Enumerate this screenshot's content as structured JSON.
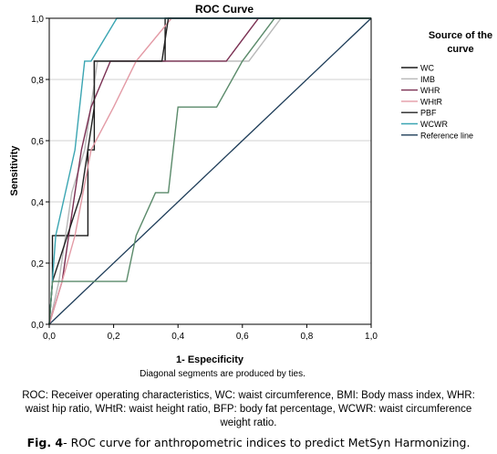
{
  "chart_data": {
    "type": "line",
    "title": "ROC Curve",
    "xlabel": "1- Especificity",
    "ylabel": "Sensitivity",
    "subtitle": "Diagonal segments are produced by ties.",
    "xlim": [
      0,
      1
    ],
    "ylim": [
      0,
      1
    ],
    "xticks": [
      "0,0",
      "0,2",
      "0,4",
      "0,6",
      "0,8",
      "1,0"
    ],
    "yticks": [
      "0,0",
      "0,2",
      "0,4",
      "0,6",
      "0,8",
      "1,0"
    ],
    "grid": "horizontal",
    "legend_title": "Source of the curve",
    "legend_position": "right",
    "series": [
      {
        "name": "WC",
        "color": "#1a1a1a",
        "points": [
          [
            0,
            0
          ],
          [
            0.01,
            0.14
          ],
          [
            0.01,
            0.29
          ],
          [
            0.12,
            0.29
          ],
          [
            0.12,
            0.57
          ],
          [
            0.14,
            0.57
          ],
          [
            0.14,
            0.86
          ],
          [
            0.36,
            0.86
          ],
          [
            0.36,
            1.0
          ],
          [
            1,
            1
          ]
        ]
      },
      {
        "name": "IMB",
        "color": "#b8b8b8",
        "points": [
          [
            0,
            0
          ],
          [
            0.03,
            0.14
          ],
          [
            0.07,
            0.43
          ],
          [
            0.11,
            0.57
          ],
          [
            0.15,
            0.86
          ],
          [
            0.62,
            0.86
          ],
          [
            0.72,
            1.0
          ],
          [
            1,
            1
          ]
        ]
      },
      {
        "name": "WHR",
        "color": "#7a2f52",
        "points": [
          [
            0,
            0
          ],
          [
            0.04,
            0.14
          ],
          [
            0.08,
            0.43
          ],
          [
            0.1,
            0.57
          ],
          [
            0.13,
            0.71
          ],
          [
            0.19,
            0.86
          ],
          [
            0.55,
            0.86
          ],
          [
            0.65,
            1.0
          ],
          [
            1,
            1
          ]
        ]
      },
      {
        "name": "WHtR",
        "color": "#e39aa5",
        "points": [
          [
            0,
            0
          ],
          [
            0.04,
            0.14
          ],
          [
            0.08,
            0.29
          ],
          [
            0.13,
            0.57
          ],
          [
            0.2,
            0.71
          ],
          [
            0.27,
            0.86
          ],
          [
            0.38,
            1.0
          ],
          [
            1,
            1
          ]
        ]
      },
      {
        "name": "PBF",
        "color": "#222222",
        "points": [
          [
            0,
            0
          ],
          [
            0.01,
            0.14
          ],
          [
            0.1,
            0.43
          ],
          [
            0.14,
            0.71
          ],
          [
            0.14,
            0.86
          ],
          [
            0.35,
            0.86
          ],
          [
            0.37,
            1.0
          ],
          [
            1,
            1
          ]
        ]
      },
      {
        "name": "WCWR",
        "color": "#3aa5b2",
        "points": [
          [
            0,
            0
          ],
          [
            0.02,
            0.29
          ],
          [
            0.05,
            0.43
          ],
          [
            0.08,
            0.57
          ],
          [
            0.11,
            0.86
          ],
          [
            0.13,
            0.86
          ],
          [
            0.21,
            1.0
          ],
          [
            1,
            1
          ]
        ]
      },
      {
        "name": "Reference line",
        "color": "#1c3b57",
        "points": [
          [
            0,
            0
          ],
          [
            1,
            1
          ]
        ]
      }
    ],
    "extra_series": [
      {
        "name": "",
        "color": "#5a8a6a",
        "points": [
          [
            0,
            0
          ],
          [
            0.01,
            0.14
          ],
          [
            0.24,
            0.14
          ],
          [
            0.27,
            0.29
          ],
          [
            0.33,
            0.43
          ],
          [
            0.37,
            0.43
          ],
          [
            0.4,
            0.71
          ],
          [
            0.52,
            0.71
          ],
          [
            0.6,
            0.86
          ],
          [
            0.7,
            1.0
          ],
          [
            1,
            1
          ]
        ]
      }
    ]
  },
  "captions": {
    "abbreviations": "ROC: Receiver operating characteristics, WC:  waist circumference, BMI: Body mass index, WHR: waist hip ratio, WHtR: waist height ratio, BFP: body fat percentage, WCWR: waist circumference weight ratio.",
    "figure_label": "Fig. 4",
    "figure_text": "- ROC curve for anthropometric indices to predict MetSyn Harmonizing."
  }
}
